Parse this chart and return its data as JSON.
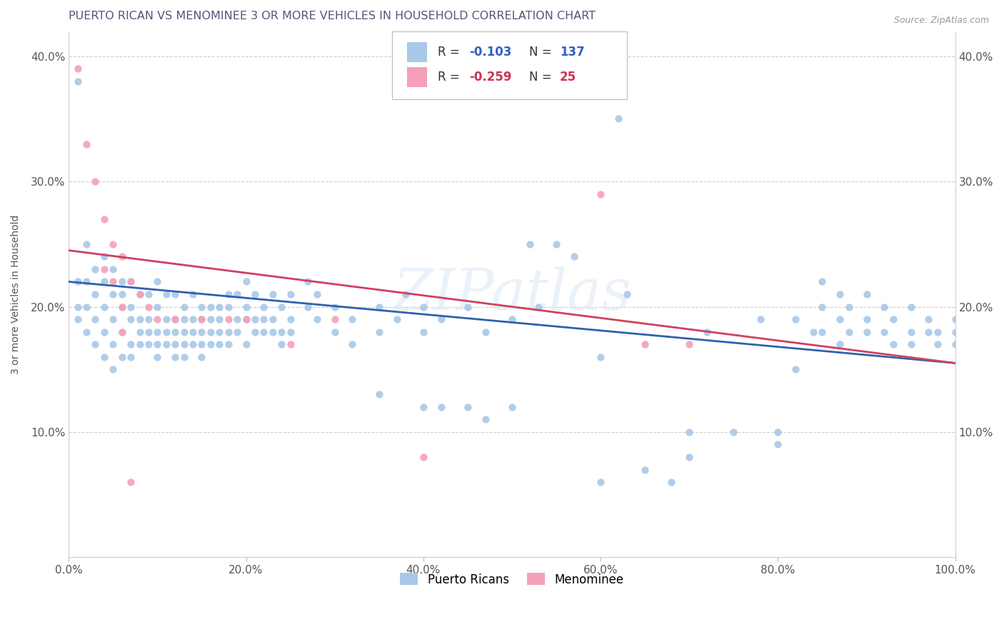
{
  "title": "PUERTO RICAN VS MENOMINEE 3 OR MORE VEHICLES IN HOUSEHOLD CORRELATION CHART",
  "source_text": "Source: ZipAtlas.com",
  "ylabel": "3 or more Vehicles in Household",
  "xlim": [
    0,
    1.0
  ],
  "ylim": [
    0,
    0.42
  ],
  "xtick_labels": [
    "0.0%",
    "20.0%",
    "40.0%",
    "60.0%",
    "80.0%",
    "100.0%"
  ],
  "xtick_vals": [
    0.0,
    0.2,
    0.4,
    0.6,
    0.8,
    1.0
  ],
  "ytick_labels": [
    "10.0%",
    "20.0%",
    "30.0%",
    "40.0%"
  ],
  "ytick_vals": [
    0.1,
    0.2,
    0.3,
    0.4
  ],
  "blue_scatter_color": "#a8c8e8",
  "pink_scatter_color": "#f4a0b8",
  "blue_line_color": "#3060b0",
  "pink_line_color": "#d04060",
  "watermark": "ZIPatlas",
  "legend_label_blue": "Puerto Ricans",
  "legend_label_pink": "Menominee",
  "blue_line_start": 0.22,
  "blue_line_end": 0.155,
  "pink_line_start": 0.245,
  "pink_line_end": 0.155,
  "blue_points": [
    [
      0.01,
      0.38
    ],
    [
      0.01,
      0.22
    ],
    [
      0.01,
      0.2
    ],
    [
      0.01,
      0.19
    ],
    [
      0.02,
      0.25
    ],
    [
      0.02,
      0.22
    ],
    [
      0.02,
      0.2
    ],
    [
      0.02,
      0.18
    ],
    [
      0.03,
      0.23
    ],
    [
      0.03,
      0.21
    ],
    [
      0.03,
      0.19
    ],
    [
      0.03,
      0.17
    ],
    [
      0.04,
      0.24
    ],
    [
      0.04,
      0.22
    ],
    [
      0.04,
      0.2
    ],
    [
      0.04,
      0.18
    ],
    [
      0.04,
      0.16
    ],
    [
      0.05,
      0.23
    ],
    [
      0.05,
      0.21
    ],
    [
      0.05,
      0.19
    ],
    [
      0.05,
      0.17
    ],
    [
      0.05,
      0.15
    ],
    [
      0.06,
      0.22
    ],
    [
      0.06,
      0.21
    ],
    [
      0.06,
      0.2
    ],
    [
      0.06,
      0.18
    ],
    [
      0.06,
      0.16
    ],
    [
      0.07,
      0.22
    ],
    [
      0.07,
      0.2
    ],
    [
      0.07,
      0.19
    ],
    [
      0.07,
      0.17
    ],
    [
      0.07,
      0.16
    ],
    [
      0.08,
      0.21
    ],
    [
      0.08,
      0.19
    ],
    [
      0.08,
      0.18
    ],
    [
      0.08,
      0.17
    ],
    [
      0.09,
      0.21
    ],
    [
      0.09,
      0.19
    ],
    [
      0.09,
      0.18
    ],
    [
      0.09,
      0.17
    ],
    [
      0.1,
      0.22
    ],
    [
      0.1,
      0.2
    ],
    [
      0.1,
      0.18
    ],
    [
      0.1,
      0.17
    ],
    [
      0.1,
      0.16
    ],
    [
      0.11,
      0.21
    ],
    [
      0.11,
      0.19
    ],
    [
      0.11,
      0.18
    ],
    [
      0.11,
      0.17
    ],
    [
      0.12,
      0.21
    ],
    [
      0.12,
      0.19
    ],
    [
      0.12,
      0.18
    ],
    [
      0.12,
      0.17
    ],
    [
      0.12,
      0.16
    ],
    [
      0.13,
      0.2
    ],
    [
      0.13,
      0.19
    ],
    [
      0.13,
      0.18
    ],
    [
      0.13,
      0.17
    ],
    [
      0.13,
      0.16
    ],
    [
      0.14,
      0.21
    ],
    [
      0.14,
      0.19
    ],
    [
      0.14,
      0.18
    ],
    [
      0.14,
      0.17
    ],
    [
      0.15,
      0.2
    ],
    [
      0.15,
      0.19
    ],
    [
      0.15,
      0.18
    ],
    [
      0.15,
      0.17
    ],
    [
      0.15,
      0.16
    ],
    [
      0.16,
      0.2
    ],
    [
      0.16,
      0.19
    ],
    [
      0.16,
      0.18
    ],
    [
      0.16,
      0.17
    ],
    [
      0.17,
      0.2
    ],
    [
      0.17,
      0.19
    ],
    [
      0.17,
      0.18
    ],
    [
      0.17,
      0.17
    ],
    [
      0.18,
      0.21
    ],
    [
      0.18,
      0.2
    ],
    [
      0.18,
      0.18
    ],
    [
      0.18,
      0.17
    ],
    [
      0.19,
      0.21
    ],
    [
      0.19,
      0.19
    ],
    [
      0.19,
      0.18
    ],
    [
      0.2,
      0.22
    ],
    [
      0.2,
      0.2
    ],
    [
      0.2,
      0.19
    ],
    [
      0.2,
      0.17
    ],
    [
      0.21,
      0.21
    ],
    [
      0.21,
      0.19
    ],
    [
      0.21,
      0.18
    ],
    [
      0.22,
      0.2
    ],
    [
      0.22,
      0.19
    ],
    [
      0.22,
      0.18
    ],
    [
      0.23,
      0.21
    ],
    [
      0.23,
      0.19
    ],
    [
      0.23,
      0.18
    ],
    [
      0.24,
      0.2
    ],
    [
      0.24,
      0.18
    ],
    [
      0.24,
      0.17
    ],
    [
      0.25,
      0.21
    ],
    [
      0.25,
      0.19
    ],
    [
      0.25,
      0.18
    ],
    [
      0.27,
      0.22
    ],
    [
      0.27,
      0.2
    ],
    [
      0.28,
      0.21
    ],
    [
      0.28,
      0.19
    ],
    [
      0.3,
      0.2
    ],
    [
      0.3,
      0.18
    ],
    [
      0.32,
      0.19
    ],
    [
      0.32,
      0.17
    ],
    [
      0.35,
      0.2
    ],
    [
      0.35,
      0.18
    ],
    [
      0.35,
      0.13
    ],
    [
      0.37,
      0.19
    ],
    [
      0.38,
      0.21
    ],
    [
      0.4,
      0.2
    ],
    [
      0.4,
      0.18
    ],
    [
      0.4,
      0.12
    ],
    [
      0.42,
      0.19
    ],
    [
      0.42,
      0.12
    ],
    [
      0.45,
      0.2
    ],
    [
      0.45,
      0.12
    ],
    [
      0.47,
      0.18
    ],
    [
      0.47,
      0.11
    ],
    [
      0.5,
      0.19
    ],
    [
      0.5,
      0.12
    ],
    [
      0.52,
      0.25
    ],
    [
      0.53,
      0.2
    ],
    [
      0.55,
      0.25
    ],
    [
      0.57,
      0.24
    ],
    [
      0.6,
      0.16
    ],
    [
      0.6,
      0.06
    ],
    [
      0.62,
      0.35
    ],
    [
      0.63,
      0.21
    ],
    [
      0.65,
      0.07
    ],
    [
      0.68,
      0.06
    ],
    [
      0.7,
      0.1
    ],
    [
      0.7,
      0.08
    ],
    [
      0.72,
      0.18
    ],
    [
      0.75,
      0.1
    ],
    [
      0.78,
      0.19
    ],
    [
      0.8,
      0.1
    ],
    [
      0.8,
      0.09
    ],
    [
      0.82,
      0.19
    ],
    [
      0.82,
      0.15
    ],
    [
      0.84,
      0.18
    ],
    [
      0.85,
      0.22
    ],
    [
      0.85,
      0.2
    ],
    [
      0.85,
      0.18
    ],
    [
      0.87,
      0.21
    ],
    [
      0.87,
      0.19
    ],
    [
      0.87,
      0.17
    ],
    [
      0.88,
      0.2
    ],
    [
      0.88,
      0.18
    ],
    [
      0.9,
      0.21
    ],
    [
      0.9,
      0.19
    ],
    [
      0.9,
      0.18
    ],
    [
      0.92,
      0.2
    ],
    [
      0.92,
      0.18
    ],
    [
      0.93,
      0.19
    ],
    [
      0.93,
      0.17
    ],
    [
      0.95,
      0.2
    ],
    [
      0.95,
      0.18
    ],
    [
      0.95,
      0.17
    ],
    [
      0.97,
      0.19
    ],
    [
      0.97,
      0.18
    ],
    [
      0.98,
      0.18
    ],
    [
      0.98,
      0.17
    ],
    [
      1.0,
      0.19
    ],
    [
      1.0,
      0.18
    ],
    [
      1.0,
      0.17
    ]
  ],
  "pink_points": [
    [
      0.01,
      0.39
    ],
    [
      0.02,
      0.33
    ],
    [
      0.03,
      0.3
    ],
    [
      0.04,
      0.27
    ],
    [
      0.04,
      0.23
    ],
    [
      0.05,
      0.25
    ],
    [
      0.05,
      0.22
    ],
    [
      0.06,
      0.24
    ],
    [
      0.06,
      0.2
    ],
    [
      0.06,
      0.18
    ],
    [
      0.07,
      0.22
    ],
    [
      0.07,
      0.06
    ],
    [
      0.08,
      0.21
    ],
    [
      0.09,
      0.2
    ],
    [
      0.1,
      0.19
    ],
    [
      0.12,
      0.19
    ],
    [
      0.15,
      0.19
    ],
    [
      0.18,
      0.19
    ],
    [
      0.2,
      0.19
    ],
    [
      0.25,
      0.17
    ],
    [
      0.3,
      0.19
    ],
    [
      0.4,
      0.08
    ],
    [
      0.6,
      0.29
    ],
    [
      0.65,
      0.17
    ],
    [
      0.7,
      0.17
    ]
  ]
}
